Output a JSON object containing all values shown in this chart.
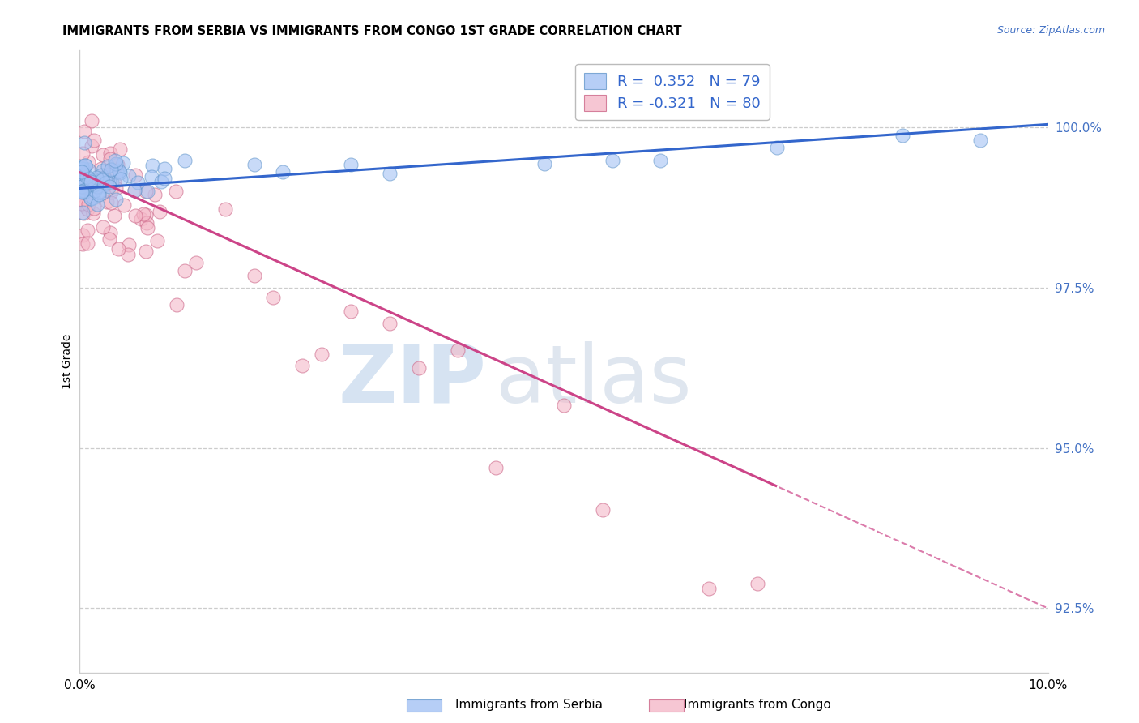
{
  "title": "IMMIGRANTS FROM SERBIA VS IMMIGRANTS FROM CONGO 1ST GRADE CORRELATION CHART",
  "source": "Source: ZipAtlas.com",
  "ylabel": "1st Grade",
  "xlim": [
    0.0,
    10.0
  ],
  "ylim": [
    91.5,
    101.2
  ],
  "serbia_R": 0.352,
  "serbia_N": 79,
  "congo_R": -0.321,
  "congo_N": 80,
  "serbia_color": "#a4c2f4",
  "serbia_edge_color": "#6699cc",
  "congo_color": "#f4b8c8",
  "congo_edge_color": "#cc6688",
  "serbia_line_color": "#3366cc",
  "congo_line_color": "#cc4488",
  "grid_color": "#cccccc",
  "ytick_color": "#4472c4",
  "yticks": [
    92.5,
    95.0,
    97.5,
    100.0
  ],
  "ytick_labels": [
    "92.5%",
    "95.0%",
    "97.5%",
    "100.0%"
  ],
  "bottom_label_serbia": "Immigrants from Serbia",
  "bottom_label_congo": "Immigrants from Congo",
  "watermark_zip": "ZIP",
  "watermark_atlas": "atlas"
}
